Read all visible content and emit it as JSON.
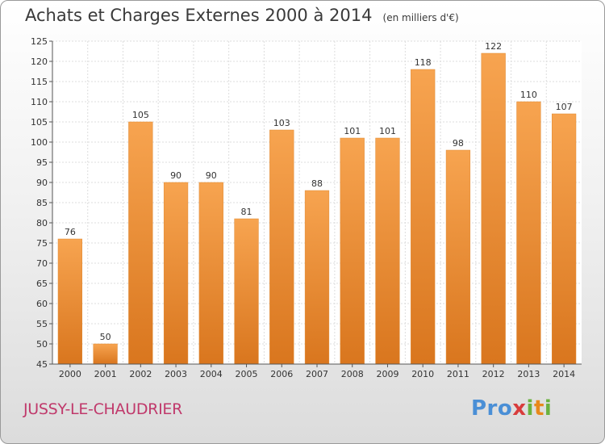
{
  "title": "Achats et Charges Externes 2000 à 2014",
  "unit_note": "(en milliers d'€)",
  "commune": "JUSSY-LE-CHAUDRIER",
  "logo": {
    "text": "Proxiti"
  },
  "colors": {
    "bar": "#f39a3c",
    "bar_dark": "#d9761e",
    "commune": "#c0396b",
    "grid": "#dddddd"
  },
  "chart_data": {
    "type": "bar",
    "title": "Achats et Charges Externes 2000 à 2014",
    "categories": [
      "2000",
      "2001",
      "2002",
      "2003",
      "2004",
      "2005",
      "2006",
      "2007",
      "2008",
      "2009",
      "2010",
      "2011",
      "2012",
      "2013",
      "2014"
    ],
    "values": [
      76,
      50,
      105,
      90,
      90,
      81,
      103,
      88,
      101,
      101,
      118,
      98,
      122,
      110,
      107
    ],
    "xlabel": "",
    "ylabel": "",
    "ylim": [
      45,
      125
    ],
    "yticks": [
      45,
      50,
      55,
      60,
      65,
      70,
      75,
      80,
      85,
      90,
      95,
      100,
      105,
      110,
      115,
      120,
      125
    ],
    "grid": true
  }
}
